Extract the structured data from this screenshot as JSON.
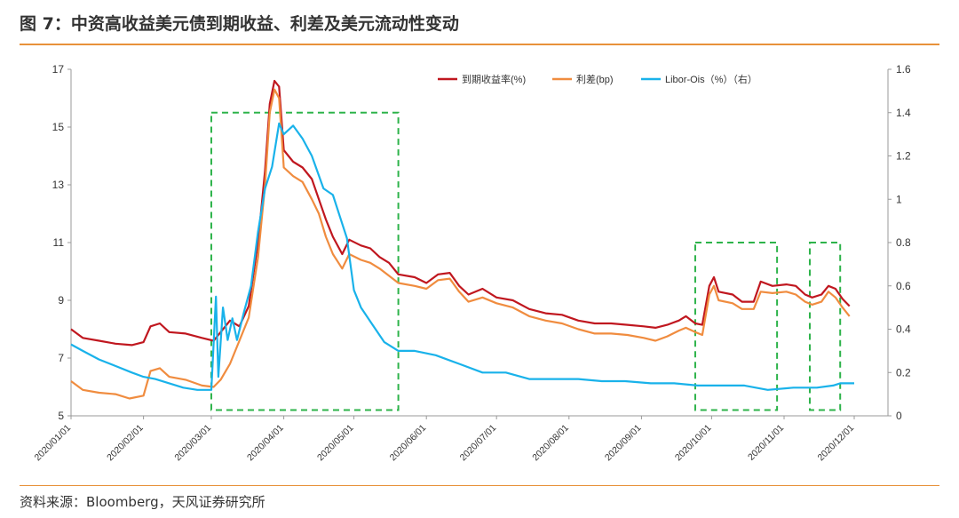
{
  "title": "图 7：中资高收益美元债到期收益、利差及美元流动性变动",
  "source": "资料来源：Bloomberg，天风证券研究所",
  "chart_data": {
    "type": "line",
    "y_left_ticks": [
      "5",
      "7",
      "9",
      "11",
      "13",
      "15",
      "17"
    ],
    "y_left_lim": [
      5,
      17
    ],
    "y_right_ticks": [
      "0",
      "0.2",
      "0.4",
      "0.6",
      "0.8",
      "1",
      "1.2",
      "1.4",
      "1.6"
    ],
    "y_right_lim": [
      0,
      1.6
    ],
    "x_ticks": [
      "2020/01/01",
      "2020/02/01",
      "2020/03/01",
      "2020/04/01",
      "2020/05/01",
      "2020/06/01",
      "2020/07/01",
      "2020/08/01",
      "2020/09/01",
      "2020/10/01",
      "2020/11/01",
      "2020/12/01"
    ],
    "legend_position": "top-right",
    "series": [
      {
        "name": "到期收益率(%)",
        "axis": "left",
        "color": "#c0171f",
        "points": [
          [
            "2020/01/01",
            8.0
          ],
          [
            "2020/01/06",
            7.7
          ],
          [
            "2020/01/13",
            7.6
          ],
          [
            "2020/01/20",
            7.5
          ],
          [
            "2020/01/27",
            7.45
          ],
          [
            "2020/02/01",
            7.55
          ],
          [
            "2020/02/04",
            8.1
          ],
          [
            "2020/02/08",
            8.2
          ],
          [
            "2020/02/12",
            7.9
          ],
          [
            "2020/02/19",
            7.85
          ],
          [
            "2020/02/26",
            7.7
          ],
          [
            "2020/03/02",
            7.6
          ],
          [
            "2020/03/05",
            7.9
          ],
          [
            "2020/03/09",
            8.3
          ],
          [
            "2020/03/13",
            8.1
          ],
          [
            "2020/03/17",
            8.8
          ],
          [
            "2020/03/21",
            11.0
          ],
          [
            "2020/03/24",
            13.5
          ],
          [
            "2020/03/26",
            15.8
          ],
          [
            "2020/03/28",
            16.6
          ],
          [
            "2020/03/30",
            16.4
          ],
          [
            "2020/04/01",
            14.2
          ],
          [
            "2020/04/05",
            13.8
          ],
          [
            "2020/04/09",
            13.6
          ],
          [
            "2020/04/13",
            13.2
          ],
          [
            "2020/04/16",
            12.5
          ],
          [
            "2020/04/19",
            11.8
          ],
          [
            "2020/04/22",
            11.2
          ],
          [
            "2020/04/26",
            10.6
          ],
          [
            "2020/04/29",
            11.1
          ],
          [
            "2020/05/04",
            10.9
          ],
          [
            "2020/05/08",
            10.8
          ],
          [
            "2020/05/12",
            10.5
          ],
          [
            "2020/05/16",
            10.3
          ],
          [
            "2020/05/20",
            9.9
          ],
          [
            "2020/05/27",
            9.8
          ],
          [
            "2020/06/01",
            9.6
          ],
          [
            "2020/06/06",
            9.9
          ],
          [
            "2020/06/11",
            9.95
          ],
          [
            "2020/06/15",
            9.5
          ],
          [
            "2020/06/19",
            9.2
          ],
          [
            "2020/06/25",
            9.4
          ],
          [
            "2020/07/01",
            9.1
          ],
          [
            "2020/07/08",
            9.0
          ],
          [
            "2020/07/15",
            8.7
          ],
          [
            "2020/07/22",
            8.55
          ],
          [
            "2020/07/29",
            8.5
          ],
          [
            "2020/08/05",
            8.3
          ],
          [
            "2020/08/12",
            8.2
          ],
          [
            "2020/08/19",
            8.2
          ],
          [
            "2020/08/26",
            8.15
          ],
          [
            "2020/09/02",
            8.1
          ],
          [
            "2020/09/07",
            8.05
          ],
          [
            "2020/09/12",
            8.15
          ],
          [
            "2020/09/17",
            8.3
          ],
          [
            "2020/09/20",
            8.45
          ],
          [
            "2020/09/24",
            8.2
          ],
          [
            "2020/09/27",
            8.15
          ],
          [
            "2020/09/30",
            9.5
          ],
          [
            "2020/10/02",
            9.8
          ],
          [
            "2020/10/04",
            9.3
          ],
          [
            "2020/10/10",
            9.2
          ],
          [
            "2020/10/14",
            8.95
          ],
          [
            "2020/10/19",
            8.95
          ],
          [
            "2020/10/22",
            9.65
          ],
          [
            "2020/10/27",
            9.5
          ],
          [
            "2020/11/02",
            9.55
          ],
          [
            "2020/11/06",
            9.5
          ],
          [
            "2020/11/10",
            9.2
          ],
          [
            "2020/11/13",
            9.1
          ],
          [
            "2020/11/17",
            9.2
          ],
          [
            "2020/11/20",
            9.5
          ],
          [
            "2020/11/23",
            9.4
          ],
          [
            "2020/11/26",
            9.05
          ],
          [
            "2020/11/29",
            8.8
          ]
        ]
      },
      {
        "name": "利差(bp)",
        "axis": "left",
        "color": "#f08c3f",
        "points": [
          [
            "2020/01/01",
            6.2
          ],
          [
            "2020/01/06",
            5.9
          ],
          [
            "2020/01/13",
            5.8
          ],
          [
            "2020/01/20",
            5.75
          ],
          [
            "2020/01/26",
            5.6
          ],
          [
            "2020/02/01",
            5.7
          ],
          [
            "2020/02/04",
            6.55
          ],
          [
            "2020/02/08",
            6.65
          ],
          [
            "2020/02/12",
            6.35
          ],
          [
            "2020/02/19",
            6.25
          ],
          [
            "2020/02/26",
            6.05
          ],
          [
            "2020/03/02",
            6.0
          ],
          [
            "2020/03/05",
            6.25
          ],
          [
            "2020/03/09",
            6.8
          ],
          [
            "2020/03/13",
            7.6
          ],
          [
            "2020/03/17",
            8.4
          ],
          [
            "2020/03/21",
            10.5
          ],
          [
            "2020/03/24",
            13.0
          ],
          [
            "2020/03/26",
            15.5
          ],
          [
            "2020/03/28",
            16.3
          ],
          [
            "2020/03/30",
            16.0
          ],
          [
            "2020/04/01",
            13.6
          ],
          [
            "2020/04/05",
            13.3
          ],
          [
            "2020/04/09",
            13.1
          ],
          [
            "2020/04/13",
            12.5
          ],
          [
            "2020/04/16",
            12.0
          ],
          [
            "2020/04/19",
            11.2
          ],
          [
            "2020/04/22",
            10.6
          ],
          [
            "2020/04/26",
            10.1
          ],
          [
            "2020/04/29",
            10.6
          ],
          [
            "2020/05/04",
            10.4
          ],
          [
            "2020/05/08",
            10.3
          ],
          [
            "2020/05/12",
            10.1
          ],
          [
            "2020/05/16",
            9.85
          ],
          [
            "2020/05/20",
            9.6
          ],
          [
            "2020/05/27",
            9.5
          ],
          [
            "2020/06/01",
            9.4
          ],
          [
            "2020/06/06",
            9.7
          ],
          [
            "2020/06/11",
            9.75
          ],
          [
            "2020/06/15",
            9.3
          ],
          [
            "2020/06/19",
            8.95
          ],
          [
            "2020/06/25",
            9.1
          ],
          [
            "2020/07/01",
            8.9
          ],
          [
            "2020/07/08",
            8.75
          ],
          [
            "2020/07/15",
            8.45
          ],
          [
            "2020/07/22",
            8.3
          ],
          [
            "2020/07/29",
            8.2
          ],
          [
            "2020/08/05",
            8.0
          ],
          [
            "2020/08/12",
            7.85
          ],
          [
            "2020/08/19",
            7.85
          ],
          [
            "2020/08/26",
            7.8
          ],
          [
            "2020/09/02",
            7.7
          ],
          [
            "2020/09/07",
            7.6
          ],
          [
            "2020/09/12",
            7.75
          ],
          [
            "2020/09/17",
            7.95
          ],
          [
            "2020/09/20",
            8.05
          ],
          [
            "2020/09/24",
            7.9
          ],
          [
            "2020/09/27",
            7.8
          ],
          [
            "2020/09/30",
            9.2
          ],
          [
            "2020/10/02",
            9.5
          ],
          [
            "2020/10/04",
            9.0
          ],
          [
            "2020/10/10",
            8.9
          ],
          [
            "2020/10/14",
            8.7
          ],
          [
            "2020/10/19",
            8.7
          ],
          [
            "2020/10/22",
            9.3
          ],
          [
            "2020/10/27",
            9.25
          ],
          [
            "2020/11/02",
            9.3
          ],
          [
            "2020/11/06",
            9.2
          ],
          [
            "2020/11/10",
            8.95
          ],
          [
            "2020/11/13",
            8.85
          ],
          [
            "2020/11/17",
            8.95
          ],
          [
            "2020/11/20",
            9.3
          ],
          [
            "2020/11/23",
            9.1
          ],
          [
            "2020/11/26",
            8.75
          ],
          [
            "2020/11/29",
            8.45
          ]
        ]
      },
      {
        "name": "Libor-Ois（%）（右）",
        "axis": "right",
        "color": "#19b2ea",
        "points": [
          [
            "2020/01/01",
            0.33
          ],
          [
            "2020/01/06",
            0.3
          ],
          [
            "2020/01/13",
            0.26
          ],
          [
            "2020/01/20",
            0.23
          ],
          [
            "2020/01/27",
            0.2
          ],
          [
            "2020/02/01",
            0.18
          ],
          [
            "2020/02/06",
            0.17
          ],
          [
            "2020/02/12",
            0.15
          ],
          [
            "2020/02/18",
            0.13
          ],
          [
            "2020/02/24",
            0.12
          ],
          [
            "2020/03/01",
            0.12
          ],
          [
            "2020/03/03",
            0.55
          ],
          [
            "2020/03/04",
            0.18
          ],
          [
            "2020/03/06",
            0.5
          ],
          [
            "2020/03/08",
            0.35
          ],
          [
            "2020/03/10",
            0.45
          ],
          [
            "2020/03/12",
            0.35
          ],
          [
            "2020/03/15",
            0.48
          ],
          [
            "2020/03/18",
            0.6
          ],
          [
            "2020/03/21",
            0.85
          ],
          [
            "2020/03/24",
            1.05
          ],
          [
            "2020/03/27",
            1.15
          ],
          [
            "2020/03/30",
            1.35
          ],
          [
            "2020/04/01",
            1.3
          ],
          [
            "2020/04/05",
            1.34
          ],
          [
            "2020/04/09",
            1.28
          ],
          [
            "2020/04/13",
            1.2
          ],
          [
            "2020/04/18",
            1.05
          ],
          [
            "2020/04/22",
            1.02
          ],
          [
            "2020/04/25",
            0.92
          ],
          [
            "2020/04/28",
            0.82
          ],
          [
            "2020/05/01",
            0.58
          ],
          [
            "2020/05/04",
            0.5
          ],
          [
            "2020/05/09",
            0.42
          ],
          [
            "2020/05/14",
            0.34
          ],
          [
            "2020/05/20",
            0.3
          ],
          [
            "2020/05/27",
            0.3
          ],
          [
            "2020/06/05",
            0.28
          ],
          [
            "2020/06/15",
            0.24
          ],
          [
            "2020/06/25",
            0.2
          ],
          [
            "2020/07/05",
            0.2
          ],
          [
            "2020/07/15",
            0.17
          ],
          [
            "2020/07/25",
            0.17
          ],
          [
            "2020/08/05",
            0.17
          ],
          [
            "2020/08/15",
            0.16
          ],
          [
            "2020/08/25",
            0.16
          ],
          [
            "2020/09/05",
            0.15
          ],
          [
            "2020/09/15",
            0.15
          ],
          [
            "2020/09/25",
            0.14
          ],
          [
            "2020/10/05",
            0.14
          ],
          [
            "2020/10/15",
            0.14
          ],
          [
            "2020/10/25",
            0.12
          ],
          [
            "2020/11/05",
            0.13
          ],
          [
            "2020/11/15",
            0.13
          ],
          [
            "2020/11/22",
            0.14
          ],
          [
            "2020/11/25",
            0.15
          ],
          [
            "2020/12/01",
            0.15
          ]
        ]
      }
    ],
    "highlight_boxes": [
      {
        "x": [
          "2020/03/01",
          "2020/05/20"
        ],
        "y": [
          5.2,
          15.5
        ]
      },
      {
        "x": [
          "2020/09/24",
          "2020/10/29"
        ],
        "y": [
          5.2,
          11.0
        ]
      },
      {
        "x": [
          "2020/11/12",
          "2020/11/25"
        ],
        "y": [
          5.2,
          11.0
        ]
      }
    ]
  }
}
